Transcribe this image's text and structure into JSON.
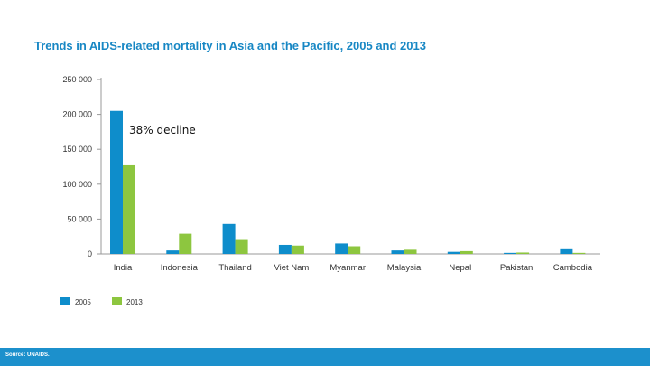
{
  "chart_data": {
    "type": "bar",
    "title": "Trends in AIDS-related mortality in Asia and the Pacific, 2005 and 2013",
    "categories": [
      "India",
      "Indonesia",
      "Thailand",
      "Viet Nam",
      "Myanmar",
      "Malaysia",
      "Nepal",
      "Pakistan",
      "Cambodia"
    ],
    "series": [
      {
        "name": "2005",
        "color": "#0e8dcb",
        "values": [
          205000,
          5000,
          43000,
          13000,
          15000,
          5000,
          3000,
          1500,
          8000
        ]
      },
      {
        "name": "2013",
        "color": "#8dc63f",
        "values": [
          127000,
          29000,
          20000,
          12000,
          11000,
          6000,
          4000,
          2000,
          1500
        ]
      }
    ],
    "ylim": [
      0,
      250000
    ],
    "yticks": [
      0,
      50000,
      100000,
      150000,
      200000,
      250000
    ],
    "ytick_labels": [
      "0",
      "50 000",
      "100 000",
      "150 000",
      "200 000",
      "250 000"
    ],
    "xlabel": "",
    "ylabel": "",
    "grid": false,
    "legend_position": "bottom-left",
    "annotations": [
      {
        "text": "38% decline",
        "x": "India",
        "y": 175000
      }
    ]
  },
  "footer": {
    "source": "Source: UNAIDS.",
    "color": "#1c90cc"
  }
}
